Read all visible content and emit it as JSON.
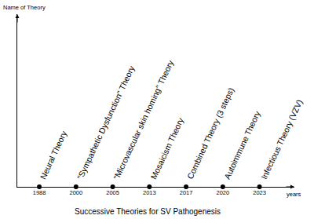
{
  "chart_data": {
    "type": "timeline",
    "title": "Successive Theories for SV Pathogenesis",
    "x_label": "years",
    "y_label": "Name of Theory",
    "categories": [
      "1988",
      "2000",
      "2005",
      "2013",
      "2017",
      "2020",
      "2023"
    ],
    "labels": [
      "Neural Theory",
      "\"Sympathetic Dysfunction\" Theory",
      "\"Microvascular skin homing\" Theory",
      "Mosaicism Theory",
      "Combined Theory (3 steps)",
      "Autoimmune Theory",
      "Infectious Theory (VZV)"
    ],
    "values": [
      0,
      0,
      0,
      0,
      0,
      0,
      0
    ],
    "ylim": [
      0,
      1
    ],
    "color": "#000000",
    "marker": "circle",
    "tick_labels": "x",
    "grid": false
  }
}
